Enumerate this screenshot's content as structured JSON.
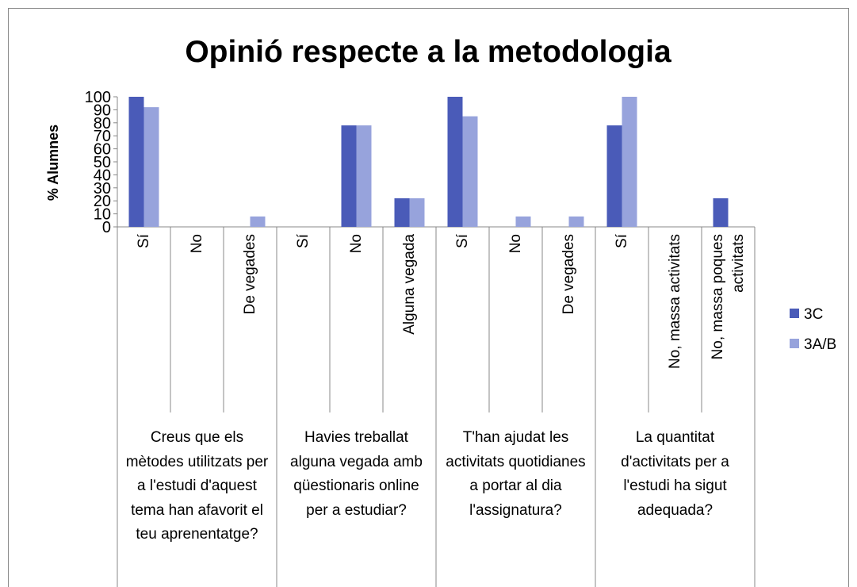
{
  "chart_data": {
    "type": "bar",
    "title": "Opinió respecte a la metodologia",
    "y_label": "% Alumnes",
    "categories": [
      "Sí",
      "No",
      "De vegades",
      "Sí",
      "No",
      "Alguna vegada",
      "Sí",
      "No",
      "De vegades",
      "Sí",
      "No, massa activitats",
      "No, massa poques activitats"
    ],
    "groups": [
      "Creus que els mètodes utilitzats per a l'estudi d'aquest tema han afavorit el teu aprenentatge?",
      "Havies treballat alguna vegada amb qüestionaris online per a estudiar?",
      "T'han ajudat les activitats quotidianes a portar al dia l'assignatura?",
      "La quantitat d'activitats per a l'estudi ha sigut adequada?"
    ],
    "series": [
      {
        "name": "3C",
        "color": "#4a5bb8",
        "values": [
          100,
          0,
          0,
          0,
          78,
          22,
          100,
          0,
          0,
          78,
          0,
          22
        ]
      },
      {
        "name": "3A/B",
        "color": "#97a3dc",
        "values": [
          92,
          0,
          8,
          0,
          78,
          22,
          85,
          8,
          8,
          100,
          0,
          0
        ]
      }
    ],
    "ylim": [
      0,
      100
    ],
    "yticks": [
      0,
      10,
      20,
      30,
      40,
      50,
      60,
      70,
      80,
      90,
      100
    ],
    "legend": "right"
  }
}
